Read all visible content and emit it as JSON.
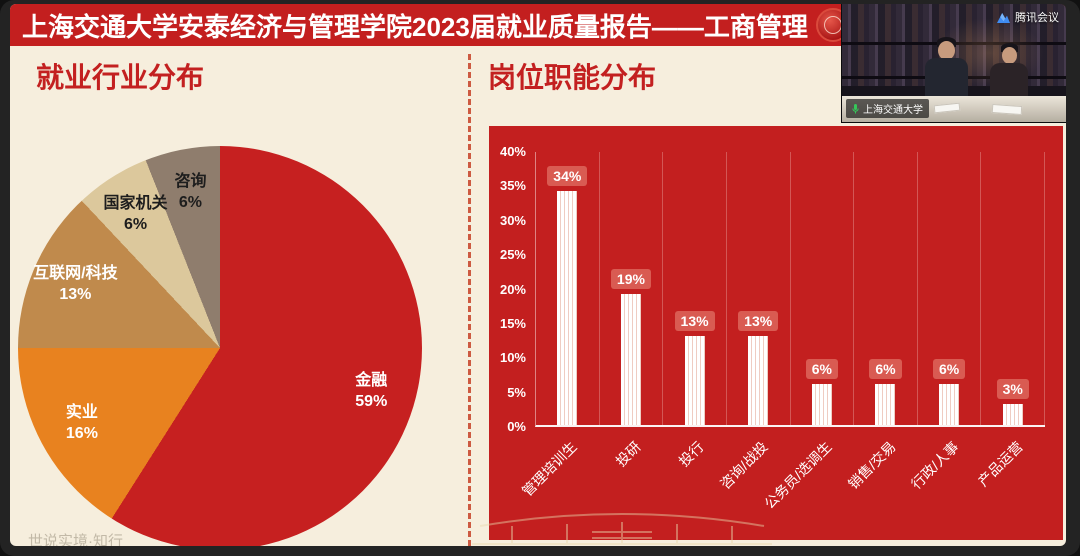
{
  "window": {
    "title": "上海交通大学安泰经济与管理学院2023届就业质量报告——工商管理"
  },
  "sections": {
    "left_heading": "就业行业分布",
    "right_heading": "岗位职能分布"
  },
  "video_overlay": {
    "app_name": "腾讯会议",
    "participant_label": "上海交通大学"
  },
  "footer": {
    "watermark": "世说实境·知行"
  },
  "colors": {
    "title_bar": "#c31f1f",
    "background": "#f6eedd",
    "heading_text": "#c32020",
    "bar_panel": "#c31f1f",
    "bar_value_tag": "#d95b52"
  },
  "chart_data": [
    {
      "type": "pie",
      "title": "就业行业分布",
      "labels": [
        "金融",
        "实业",
        "互联网/科技",
        "国家机关",
        "咨询"
      ],
      "values": [
        59,
        16,
        13,
        6,
        6
      ],
      "colors": [
        "#c62020",
        "#e8821f",
        "#c08a4c",
        "#dcc89c",
        "#8f7d6d"
      ],
      "label_colors": [
        "#ffffff",
        "#ffffff",
        "#ffffff",
        "#1d1d1d",
        "#1d1d1d"
      ],
      "start_angle_deg": 0,
      "direction": "clockwise",
      "legend_position": "inside"
    },
    {
      "type": "bar",
      "title": "岗位职能分布",
      "categories": [
        "管理培训生",
        "投研",
        "投行",
        "咨询/战投",
        "公务员/选调生",
        "销售/交易",
        "行政/人事",
        "产品运营"
      ],
      "values": [
        34,
        19,
        13,
        13,
        6,
        6,
        6,
        3
      ],
      "y_ticks": [
        "40%",
        "35%",
        "30%",
        "25%",
        "20%",
        "15%",
        "10%",
        "5%",
        "0%"
      ],
      "ylim": [
        0,
        40
      ],
      "data_label_format": "percent",
      "grid": "vertical-separators",
      "legend_position": "none"
    }
  ]
}
